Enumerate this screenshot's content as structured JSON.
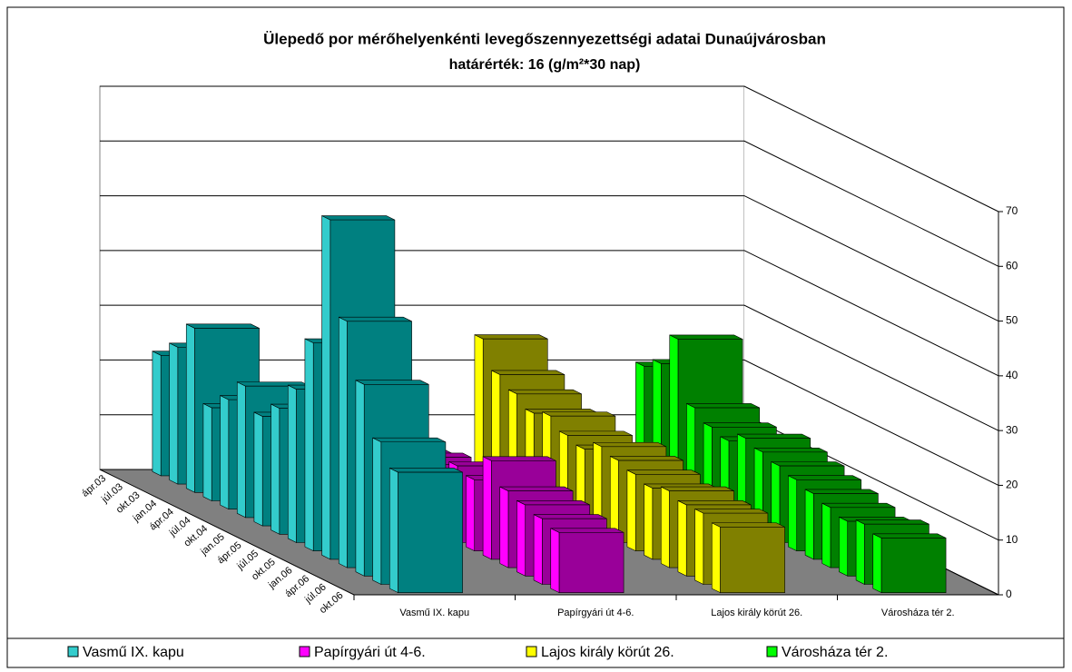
{
  "chart_data": {
    "type": "bar3d",
    "title": "Ülepedő por mérőhelyenkénti levegőszennyezettségi adatai Dunaújvárosban",
    "subtitle": "határérték: 16 (g/m²*30 nap)",
    "categories": [
      "ápr.03",
      "júl.03",
      "okt.03",
      "jan.04",
      "ápr.04",
      "júl.04",
      "okt.04",
      "jan.05",
      "ápr.05",
      "júl.05",
      "okt.05",
      "jan.06",
      "ápr.06",
      "júl.06",
      "okt.06"
    ],
    "series": [
      {
        "name": "Vasmű IX. kapu",
        "color": "#008080",
        "legend_color": "#33cccc",
        "values": [
          22,
          25,
          30,
          17,
          20,
          24,
          20,
          23,
          28,
          38,
          62,
          45,
          35,
          26,
          22
        ]
      },
      {
        "name": "Papírgyári út 4-6.",
        "color": "#990099",
        "legend_color": "#ff00ff",
        "values": [
          10,
          12,
          15,
          9,
          10,
          11,
          9,
          12,
          14,
          13,
          18,
          14,
          13,
          12,
          11
        ]
      },
      {
        "name": "Lajos király körút 26.",
        "color": "#808000",
        "legend_color": "#ffff00",
        "values": [
          25,
          20,
          18,
          16,
          17,
          15,
          14,
          16,
          15,
          14,
          13,
          14,
          13,
          13,
          12
        ]
      },
      {
        "name": "Városháza tér 2.",
        "color": "#008000",
        "legend_color": "#00ff00",
        "values": [
          20,
          22,
          28,
          17,
          15,
          14,
          16,
          15,
          14,
          13,
          12,
          11,
          10,
          11,
          10
        ]
      }
    ],
    "ylim": [
      0,
      70
    ],
    "yticks": [
      0,
      10,
      20,
      30,
      40,
      50,
      60,
      70
    ],
    "grid": true
  }
}
